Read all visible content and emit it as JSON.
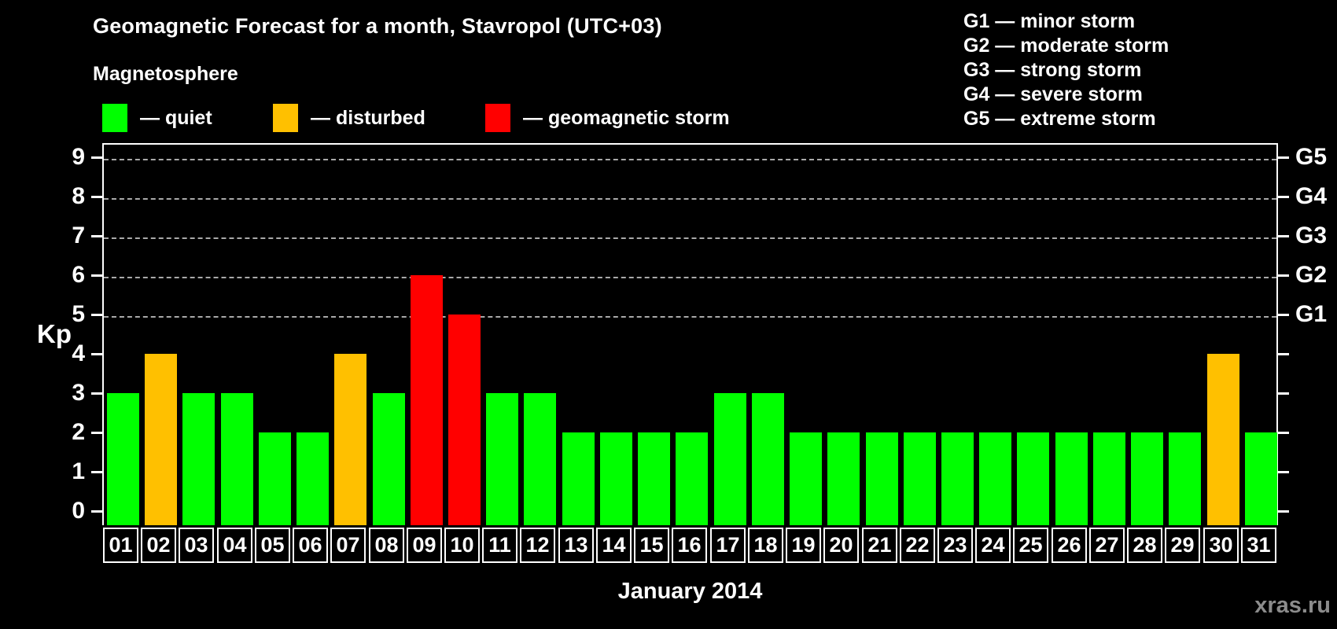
{
  "title": "Geomagnetic Forecast for a month, Stavropol (UTC+03)",
  "subtitle": "Magnetosphere",
  "legend": {
    "items": [
      {
        "key": "quiet",
        "label": "— quiet",
        "color": "#00ff00",
        "x": 130
      },
      {
        "key": "disturbed",
        "label": "— disturbed",
        "color": "#ffc000",
        "x": 347
      },
      {
        "key": "storm",
        "label": "— geomagnetic storm",
        "color": "#ff0000",
        "x": 617
      }
    ]
  },
  "g_legend": [
    "G1 — minor storm",
    "G2 — moderate storm",
    "G3 — strong storm",
    "G4 — severe storm",
    "G5 — extreme storm"
  ],
  "axes": {
    "y_label": "Kp",
    "y_ticks": [
      0,
      1,
      2,
      3,
      4,
      5,
      6,
      7,
      8,
      9
    ],
    "right_ticks": [
      {
        "kp": 5,
        "label": "G1"
      },
      {
        "kp": 6,
        "label": "G2"
      },
      {
        "kp": 7,
        "label": "G3"
      },
      {
        "kp": 8,
        "label": "G4"
      },
      {
        "kp": 9,
        "label": "G5"
      }
    ],
    "x_label": "January 2014"
  },
  "watermark": "xras.ru",
  "chart_data": {
    "type": "bar",
    "title": "Geomagnetic Forecast for a month, Stavropol (UTC+03)",
    "xlabel": "January 2014",
    "ylabel": "Kp",
    "ylim": [
      0,
      9
    ],
    "grid_levels": [
      5,
      6,
      7,
      8,
      9
    ],
    "legend_position": "top",
    "categories": [
      "01",
      "02",
      "03",
      "04",
      "05",
      "06",
      "07",
      "08",
      "09",
      "10",
      "11",
      "12",
      "13",
      "14",
      "15",
      "16",
      "17",
      "18",
      "19",
      "20",
      "21",
      "22",
      "23",
      "24",
      "25",
      "26",
      "27",
      "28",
      "29",
      "30",
      "31"
    ],
    "values": [
      3,
      4,
      3,
      3,
      2,
      2,
      4,
      3,
      6,
      5,
      3,
      3,
      2,
      2,
      2,
      2,
      3,
      3,
      2,
      2,
      2,
      2,
      2,
      2,
      2,
      2,
      2,
      2,
      2,
      4,
      2
    ],
    "statuses": [
      "quiet",
      "disturbed",
      "quiet",
      "quiet",
      "quiet",
      "quiet",
      "disturbed",
      "quiet",
      "storm",
      "storm",
      "quiet",
      "quiet",
      "quiet",
      "quiet",
      "quiet",
      "quiet",
      "quiet",
      "quiet",
      "quiet",
      "quiet",
      "quiet",
      "quiet",
      "quiet",
      "quiet",
      "quiet",
      "quiet",
      "quiet",
      "quiet",
      "quiet",
      "disturbed",
      "quiet"
    ],
    "status_colors": {
      "quiet": "#00ff00",
      "disturbed": "#ffc000",
      "storm": "#ff0000"
    }
  }
}
